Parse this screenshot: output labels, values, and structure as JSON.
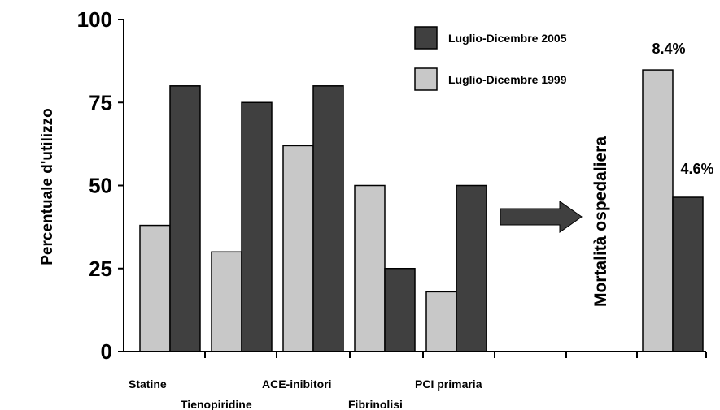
{
  "chart_data": {
    "type": "bar",
    "ylabel": "Percentuale d'utilizzo",
    "ylim": [
      0,
      100
    ],
    "yticks": [
      0,
      25,
      50,
      75,
      100
    ],
    "categories": [
      "Statine",
      "Tienopiridine",
      "ACE-inibitori",
      "Fibrinolisi",
      "PCI primaria"
    ],
    "series": [
      {
        "name": "Luglio-Dicembre 1999",
        "color": "#c8c8c8",
        "values": [
          38,
          30,
          62,
          50,
          18
        ]
      },
      {
        "name": "Luglio-Dicembre 2005",
        "color": "#404040",
        "values": [
          80,
          75,
          80,
          25,
          50
        ]
      }
    ],
    "legend_position": "top-right",
    "mortality": {
      "label": "Mortalità ospedaliera",
      "values": [
        {
          "series": "Luglio-Dicembre 1999",
          "value": 8.4,
          "label": "8.4%"
        },
        {
          "series": "Luglio-Dicembre 2005",
          "value": 4.6,
          "label": "4.6%"
        }
      ],
      "arrow": "right-arrow-icon"
    }
  }
}
